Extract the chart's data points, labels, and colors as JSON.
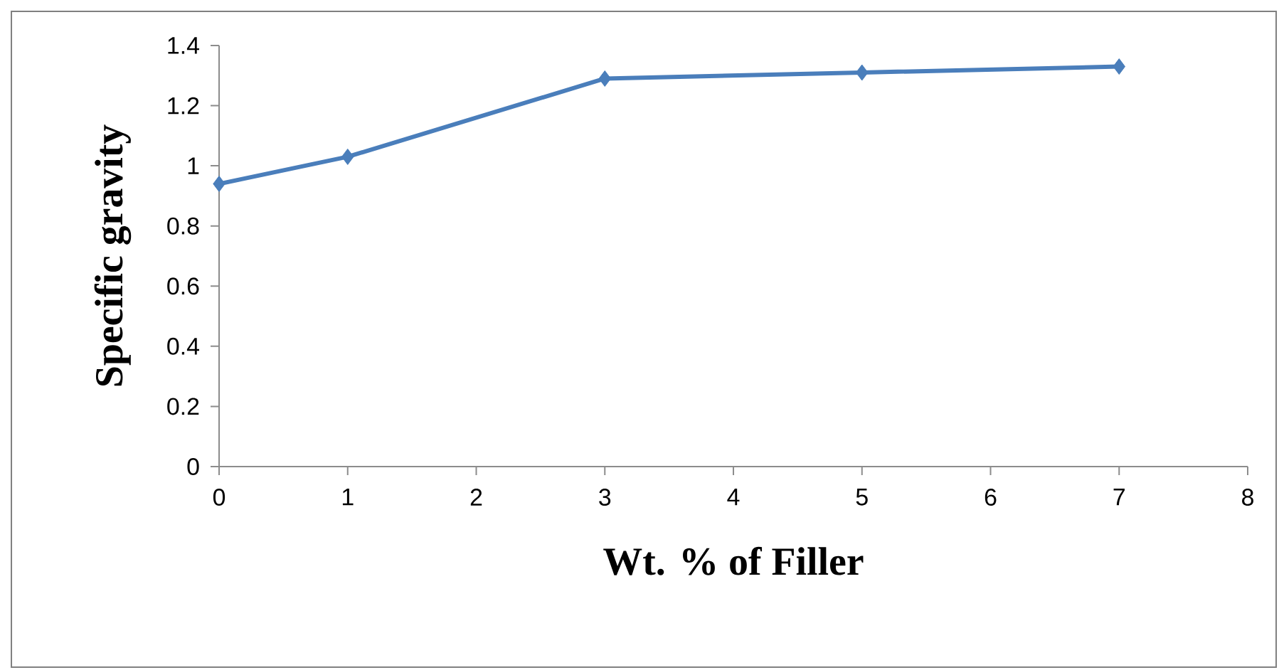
{
  "chart_data": {
    "type": "line",
    "xlabel": "Wt. % of Filler",
    "ylabel": "Specific gravity",
    "x": [
      0,
      1,
      3,
      5,
      7
    ],
    "series": [
      {
        "color": "#4a7ebb",
        "values": [
          0.94,
          1.03,
          1.29,
          1.31,
          1.33
        ]
      }
    ],
    "xlim": [
      0,
      8
    ],
    "xticks": [
      0,
      1,
      2,
      3,
      4,
      5,
      6,
      7,
      8
    ],
    "ylim": [
      0,
      1.4
    ],
    "yticks": [
      0,
      0.2,
      0.4,
      0.6,
      0.8,
      1,
      1.2,
      1.4
    ],
    "marker": "diamond",
    "line_style": "solid",
    "grid": false
  }
}
